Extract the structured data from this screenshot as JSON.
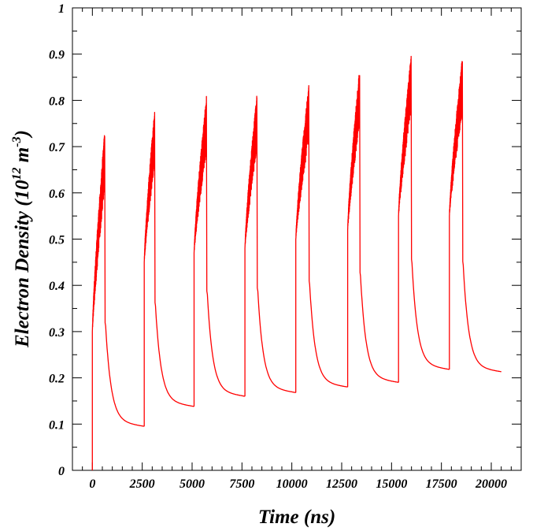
{
  "chart_data": {
    "type": "line",
    "title": "",
    "xlabel": "Time (ns)",
    "ylabel_parts": {
      "base": "Electron Density (10",
      "exp1": "12",
      "mid": " m",
      "exp2": "-3",
      "end": ")"
    },
    "xlim": [
      -1000,
      21500
    ],
    "ylim": [
      0,
      1
    ],
    "x_ticks": [
      0,
      2500,
      5000,
      7500,
      10000,
      12500,
      15000,
      17500,
      20000
    ],
    "y_ticks": [
      0,
      0.1,
      0.2,
      0.3,
      0.4,
      0.5,
      0.6,
      0.7,
      0.8,
      0.9,
      1
    ],
    "y_tick_labels": [
      "0",
      "0.1",
      "0.2",
      "0.3",
      "0.4",
      "0.5",
      "0.6",
      "0.7",
      "0.8",
      "0.9",
      "1"
    ],
    "grid": false,
    "line_color": "#ff0000",
    "series": [
      {
        "pulses": [
          {
            "start": 0,
            "end": 620,
            "base": 0.0,
            "low_at_start": 0.3,
            "peak": 0.735,
            "decay_to": 0.095,
            "decay_until": 2600
          },
          {
            "start": 2600,
            "end": 3120,
            "base": 0.095,
            "low_at_start": 0.45,
            "peak": 0.78,
            "decay_to": 0.138,
            "decay_until": 5100
          },
          {
            "start": 5100,
            "end": 5720,
            "base": 0.138,
            "low_at_start": 0.47,
            "peak": 0.81,
            "decay_to": 0.16,
            "decay_until": 7650
          },
          {
            "start": 7650,
            "end": 8250,
            "base": 0.16,
            "low_at_start": 0.48,
            "peak": 0.815,
            "decay_to": 0.168,
            "decay_until": 10200
          },
          {
            "start": 10200,
            "end": 10850,
            "base": 0.168,
            "low_at_start": 0.5,
            "peak": 0.835,
            "decay_to": 0.18,
            "decay_until": 12800
          },
          {
            "start": 12800,
            "end": 13400,
            "base": 0.18,
            "low_at_start": 0.52,
            "peak": 0.87,
            "decay_to": 0.19,
            "decay_until": 15350
          },
          {
            "start": 15350,
            "end": 15980,
            "base": 0.19,
            "low_at_start": 0.55,
            "peak": 0.898,
            "decay_to": 0.218,
            "decay_until": 17900
          },
          {
            "start": 17900,
            "end": 18550,
            "base": 0.218,
            "low_at_start": 0.55,
            "peak": 0.895,
            "decay_to": 0.213,
            "decay_until": 20500
          }
        ]
      }
    ]
  }
}
